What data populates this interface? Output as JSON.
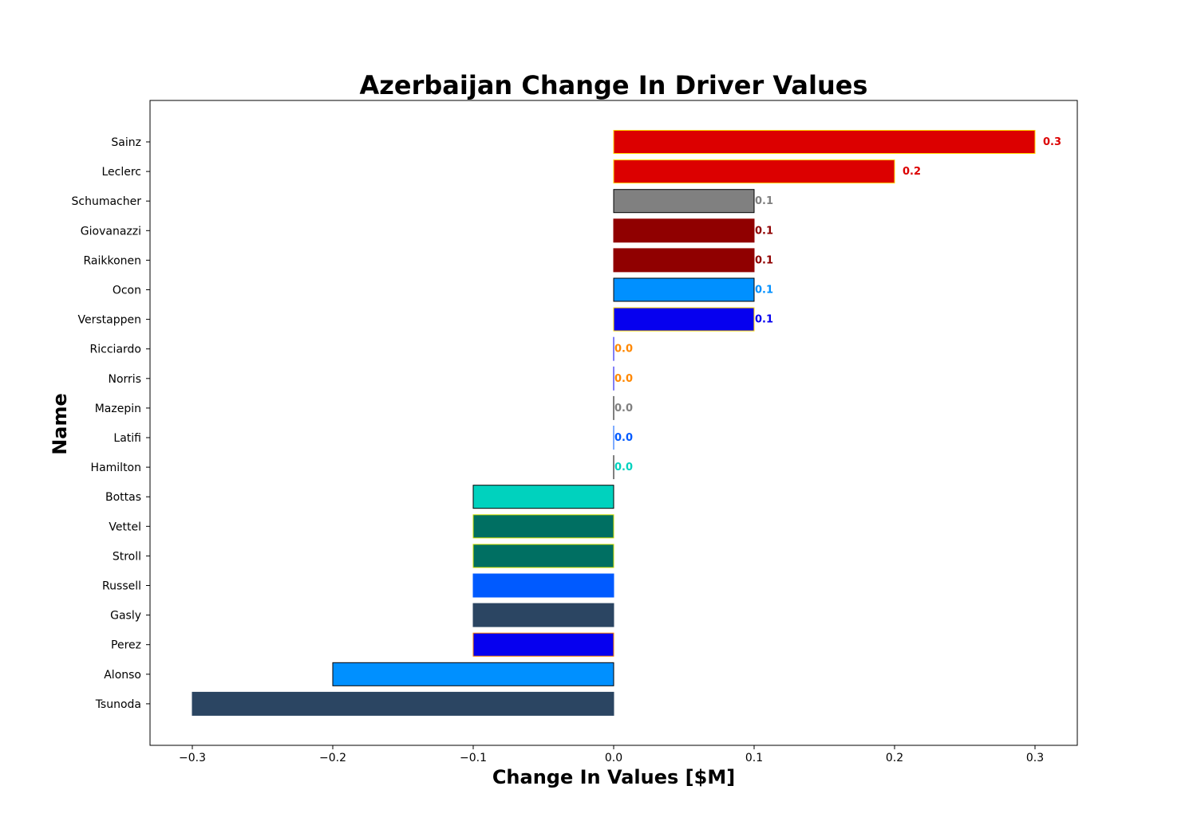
{
  "chart_data": {
    "type": "bar",
    "orientation": "horizontal",
    "title": "Azerbaijan Change In Driver Values",
    "xlabel": "Change In Values [$M]",
    "ylabel": "Name",
    "xlim": [
      -0.33,
      0.33
    ],
    "xticks": [
      -0.3,
      -0.2,
      -0.1,
      0.0,
      0.1,
      0.2,
      0.3
    ],
    "xtick_labels": [
      "−0.3",
      "−0.2",
      "−0.1",
      "0.0",
      "0.1",
      "0.2",
      "0.3"
    ],
    "grid": false,
    "categories": [
      "Sainz",
      "Leclerc",
      "Schumacher",
      "Giovanazzi",
      "Raikkonen",
      "Ocon",
      "Verstappen",
      "Ricciardo",
      "Norris",
      "Mazepin",
      "Latifi",
      "Hamilton",
      "Bottas",
      "Vettel",
      "Stroll",
      "Russell",
      "Gasly",
      "Perez",
      "Alonso",
      "Tsunoda"
    ],
    "values": [
      0.3,
      0.2,
      0.1,
      0.1,
      0.1,
      0.1,
      0.1,
      0.0,
      0.0,
      0.0,
      0.0,
      0.0,
      -0.1,
      -0.1,
      -0.1,
      -0.1,
      -0.1,
      -0.1,
      -0.2,
      -0.3
    ],
    "value_labels": [
      "0.3",
      "0.2",
      "0.1",
      "0.1",
      "0.1",
      "0.1",
      "0.1",
      "0.0",
      "0.0",
      "0.0",
      "0.0",
      "0.0",
      "",
      "",
      "",
      "",
      "",
      "",
      "",
      ""
    ],
    "colors": [
      "#DC0000",
      "#DC0000",
      "#808080",
      "#900000",
      "#900000",
      "#0090FF",
      "#0600EF",
      "#FF8700",
      "#FF8700",
      "#808080",
      "#005AFF",
      "#00D2BE",
      "#00D2BE",
      "#006F62",
      "#006F62",
      "#005AFF",
      "#2B4562",
      "#0600EF",
      "#0090FF",
      "#2B4562"
    ],
    "edge_colors": [
      "#FFD700",
      "#FFD700",
      "#000000",
      "#900000",
      "#900000",
      "#000000",
      "#FFD700",
      "#0600EF",
      "#0600EF",
      "#000000",
      "#005AFF",
      "#000000",
      "#000000",
      "#CEDC00",
      "#CEDC00",
      "#005AFF",
      "#2B4562",
      "#FF8700",
      "#000000",
      "#2B4562"
    ]
  }
}
